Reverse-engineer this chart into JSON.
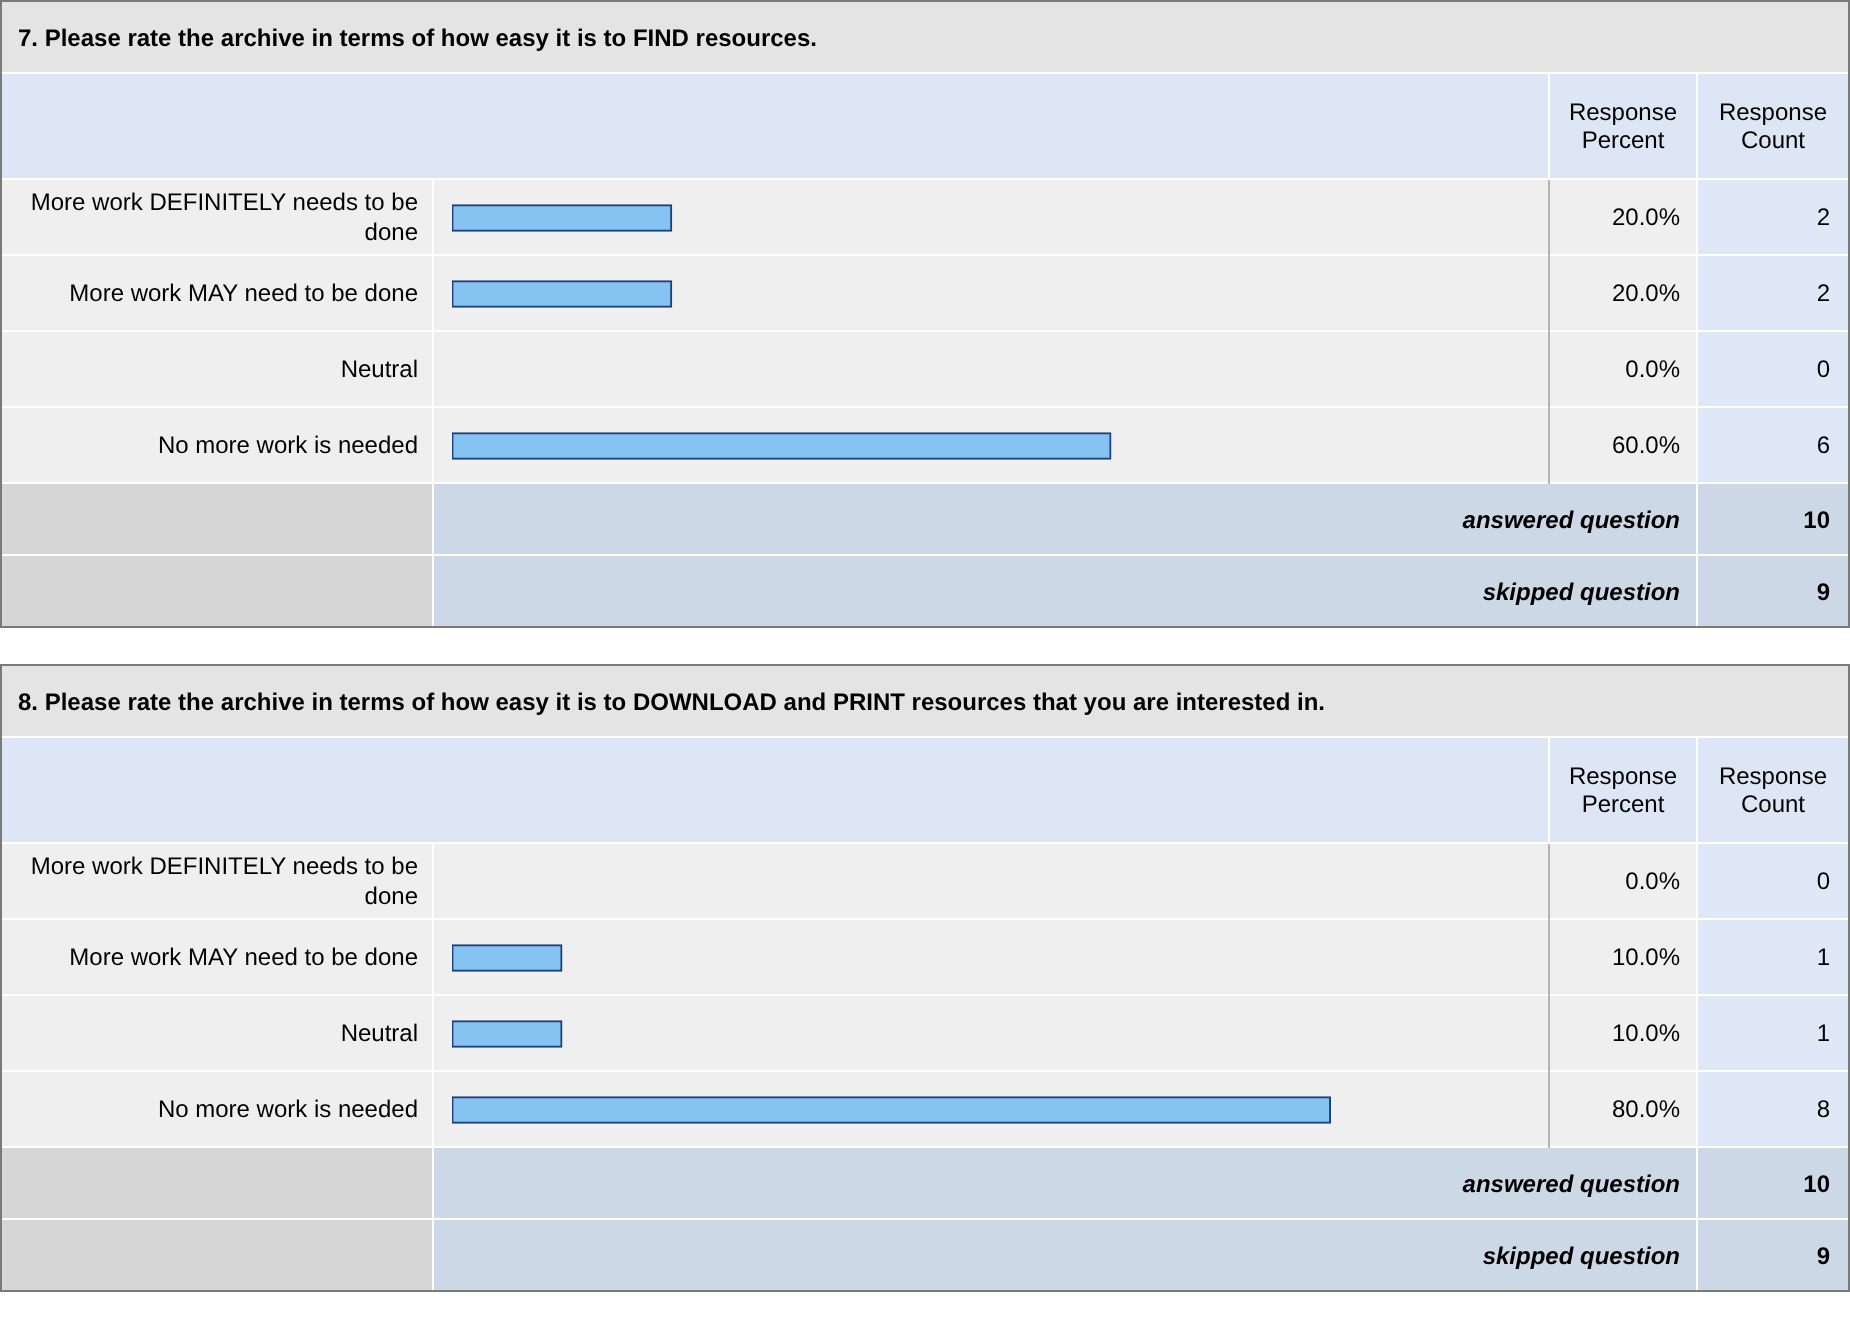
{
  "chart_data": [
    {
      "type": "bar",
      "orientation": "horizontal",
      "title": "7. Please rate the archive in terms of how easy it is to FIND resources.",
      "categories": [
        "More work DEFINITELY needs to be done",
        "More work MAY need to be done",
        "Neutral",
        "No more work is needed"
      ],
      "values": [
        20,
        20,
        0,
        60
      ],
      "value_labels": [
        "20.0%",
        "20.0%",
        "0.0%",
        "60.0%"
      ],
      "color": "#84c2f2",
      "xlim": [
        0,
        100
      ],
      "tick_labels": "y",
      "annotations": [
        "Response Percent",
        "Response Count",
        "answered question",
        "10",
        "skipped question",
        "9",
        "2",
        "2",
        "0",
        "6"
      ]
    },
    {
      "type": "bar",
      "orientation": "horizontal",
      "title": "8. Please rate the archive in terms of how easy it is to DOWNLOAD and PRINT resources that you are interested in.",
      "categories": [
        "More work DEFINITELY needs to be done",
        "More work MAY need to be done",
        "Neutral",
        "No more work is needed"
      ],
      "values": [
        0,
        10,
        10,
        80
      ],
      "value_labels": [
        "0.0%",
        "10.0%",
        "10.0%",
        "80.0%"
      ],
      "color": "#84c2f2",
      "xlim": [
        0,
        100
      ],
      "tick_labels": "y",
      "annotations": [
        "Response Percent",
        "Response Count",
        "answered question",
        "10",
        "skipped question",
        "9",
        "0",
        "1",
        "1",
        "8"
      ]
    }
  ]
}
